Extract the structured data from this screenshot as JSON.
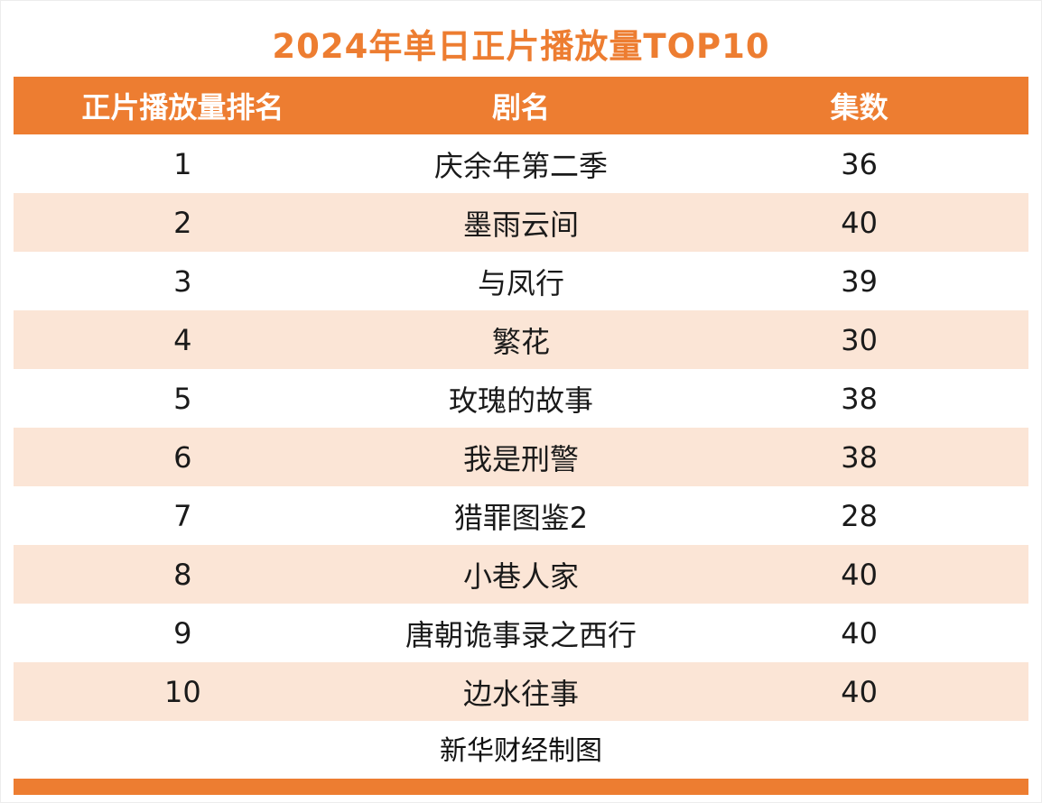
{
  "title": "2024年单日正片播放量TOP10",
  "table": {
    "headers": [
      "正片播放量排名",
      "剧名",
      "集数"
    ],
    "rows": [
      {
        "rank": "1",
        "name": "庆余年第二季",
        "episodes": "36"
      },
      {
        "rank": "2",
        "name": "墨雨云间",
        "episodes": "40"
      },
      {
        "rank": "3",
        "name": "与凤行",
        "episodes": "39"
      },
      {
        "rank": "4",
        "name": "繁花",
        "episodes": "30"
      },
      {
        "rank": "5",
        "name": "玫瑰的故事",
        "episodes": "38"
      },
      {
        "rank": "6",
        "name": "我是刑警",
        "episodes": "38"
      },
      {
        "rank": "7",
        "name": "猎罪图鉴2",
        "episodes": "28"
      },
      {
        "rank": "8",
        "name": "小巷人家",
        "episodes": "40"
      },
      {
        "rank": "9",
        "name": "唐朝诡事录之西行",
        "episodes": "40"
      },
      {
        "rank": "10",
        "name": "边水往事",
        "episodes": "40"
      }
    ]
  },
  "footer": "新华财经制图",
  "colors": {
    "accent": "#ED7D31",
    "row_alt": "#FBE5D6",
    "header_text": "#FFFFFF",
    "title_text": "#ED7D31"
  },
  "chart_data": {
    "type": "table",
    "title": "2024年单日正片播放量TOP10",
    "columns": [
      "正片播放量排名",
      "剧名",
      "集数"
    ],
    "rows": [
      [
        "1",
        "庆余年第二季",
        "36"
      ],
      [
        "2",
        "墨雨云间",
        "40"
      ],
      [
        "3",
        "与凤行",
        "39"
      ],
      [
        "4",
        "繁花",
        "30"
      ],
      [
        "5",
        "玫瑰的故事",
        "38"
      ],
      [
        "6",
        "我是刑警",
        "38"
      ],
      [
        "7",
        "猎罪图鉴2",
        "28"
      ],
      [
        "8",
        "小巷人家",
        "40"
      ],
      [
        "9",
        "唐朝诡事录之西行",
        "40"
      ],
      [
        "10",
        "边水往事",
        "40"
      ]
    ],
    "source": "新华财经制图",
    "legend_position": "none",
    "grid": false
  }
}
